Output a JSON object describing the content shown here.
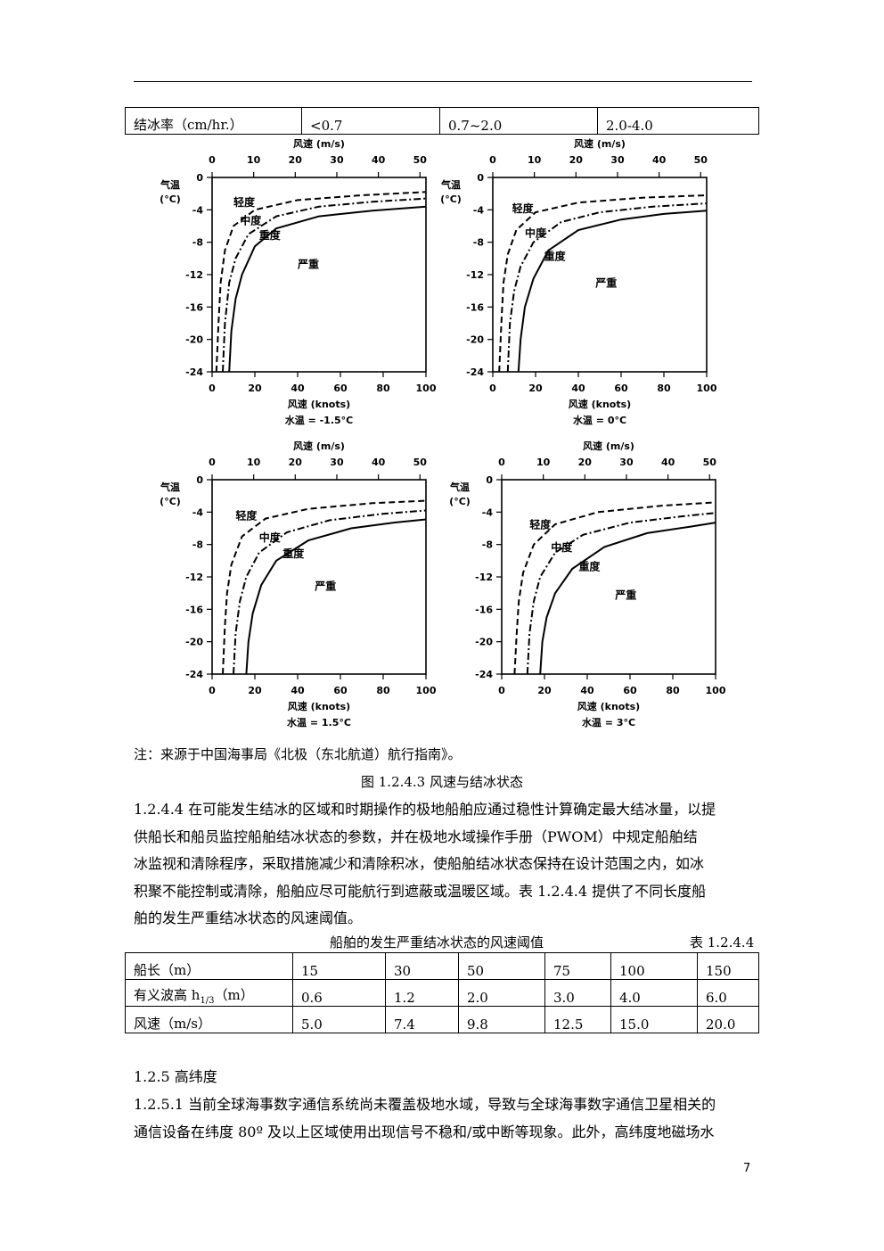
{
  "ice_rate_table": {
    "cells": [
      "结冰率（cm/hr.）",
      "<0.7",
      "0.7~2.0",
      "2.0-4.0"
    ]
  },
  "charts": [
    {
      "water_temp_label": "水温 = -1.5°C",
      "labels": {
        "light": "轻度",
        "moderate": "中度",
        "heavy": "重度",
        "severe": "严重"
      }
    },
    {
      "water_temp_label": "水温 = 0°C",
      "labels": {
        "light": "轻度",
        "moderate": "中度",
        "heavy": "重度",
        "severe": "严重"
      }
    },
    {
      "water_temp_label": "水温 = 1.5°C",
      "labels": {
        "light": "轻度",
        "moderate": "中度",
        "heavy": "重度",
        "severe": "严重"
      }
    },
    {
      "water_temp_label": "水温 = 3°C",
      "labels": {
        "light": "轻度",
        "moderate": "中度",
        "heavy": "重度",
        "severe": "严重"
      }
    }
  ],
  "chart_common": {
    "top_axis_label": "风速 (m/s)",
    "bottom_axis_label": "风速 (knots)",
    "y_axis_label_line1": "气温",
    "y_axis_label_line2": "(°C)",
    "top_ticks": [
      "0",
      "10",
      "20",
      "30",
      "40",
      "50"
    ],
    "bottom_ticks": [
      "0",
      "20",
      "40",
      "60",
      "80",
      "100"
    ],
    "y_ticks": [
      "0",
      "-4",
      "-8",
      "-12",
      "-16",
      "-20",
      "-24"
    ]
  },
  "chart_data": [
    {
      "type": "line",
      "title": "水温 = -1.5°C",
      "xlabel": "风速 (knots)",
      "x2label": "风速 (m/s)",
      "ylabel": "气温 (°C)",
      "xlim": [
        0,
        100
      ],
      "ylim": [
        -24,
        0
      ],
      "series": [
        {
          "name": "轻度",
          "style": "dashed",
          "points": [
            [
              2,
              -24
            ],
            [
              3,
              -18
            ],
            [
              4,
              -13
            ],
            [
              6,
              -9
            ],
            [
              10,
              -6
            ],
            [
              20,
              -4
            ],
            [
              40,
              -2.8
            ],
            [
              70,
              -2.2
            ],
            [
              100,
              -1.8
            ]
          ]
        },
        {
          "name": "中度",
          "style": "dashdot",
          "points": [
            [
              5,
              -24
            ],
            [
              6,
              -18
            ],
            [
              8,
              -13
            ],
            [
              11,
              -10
            ],
            [
              17,
              -7
            ],
            [
              30,
              -4.8
            ],
            [
              50,
              -3.6
            ],
            [
              75,
              -3
            ],
            [
              100,
              -2.6
            ]
          ]
        },
        {
          "name": "重度",
          "style": "solid",
          "points": [
            [
              8,
              -24
            ],
            [
              9,
              -19
            ],
            [
              11,
              -15
            ],
            [
              14,
              -12
            ],
            [
              20,
              -8.5
            ],
            [
              30,
              -6.3
            ],
            [
              50,
              -4.8
            ],
            [
              75,
              -4.1
            ],
            [
              100,
              -3.6
            ]
          ]
        }
      ]
    },
    {
      "type": "line",
      "title": "水温 = 0°C",
      "xlabel": "风速 (knots)",
      "x2label": "风速 (m/s)",
      "ylabel": "气温 (°C)",
      "xlim": [
        0,
        100
      ],
      "ylim": [
        -24,
        0
      ],
      "series": [
        {
          "name": "轻度",
          "style": "dashed",
          "points": [
            [
              3,
              -24
            ],
            [
              4,
              -18
            ],
            [
              5,
              -13
            ],
            [
              7,
              -9.5
            ],
            [
              11,
              -6.5
            ],
            [
              20,
              -4.3
            ],
            [
              40,
              -3.1
            ],
            [
              70,
              -2.5
            ],
            [
              100,
              -2.2
            ]
          ]
        },
        {
          "name": "中度",
          "style": "dashdot",
          "points": [
            [
              7,
              -24
            ],
            [
              8,
              -18
            ],
            [
              10,
              -14
            ],
            [
              13,
              -11
            ],
            [
              19,
              -8
            ],
            [
              32,
              -5.5
            ],
            [
              50,
              -4.3
            ],
            [
              75,
              -3.6
            ],
            [
              100,
              -3.2
            ]
          ]
        },
        {
          "name": "重度",
          "style": "solid",
          "points": [
            [
              12,
              -24
            ],
            [
              13,
              -20
            ],
            [
              15,
              -16
            ],
            [
              19,
              -12.5
            ],
            [
              26,
              -9
            ],
            [
              40,
              -6.5
            ],
            [
              60,
              -5.2
            ],
            [
              80,
              -4.5
            ],
            [
              100,
              -4.1
            ]
          ]
        }
      ]
    },
    {
      "type": "line",
      "title": "水温 = 1.5°C",
      "xlabel": "风速 (knots)",
      "x2label": "风速 (m/s)",
      "ylabel": "气温 (°C)",
      "xlim": [
        0,
        100
      ],
      "ylim": [
        -24,
        0
      ],
      "series": [
        {
          "name": "轻度",
          "style": "dashed",
          "points": [
            [
              5,
              -24
            ],
            [
              6,
              -18
            ],
            [
              7,
              -14
            ],
            [
              9,
              -10.5
            ],
            [
              14,
              -7
            ],
            [
              25,
              -4.8
            ],
            [
              45,
              -3.6
            ],
            [
              75,
              -2.9
            ],
            [
              100,
              -2.6
            ]
          ]
        },
        {
          "name": "中度",
          "style": "dashdot",
          "points": [
            [
              10,
              -24
            ],
            [
              11,
              -19
            ],
            [
              13,
              -15
            ],
            [
              16,
              -12
            ],
            [
              22,
              -9
            ],
            [
              35,
              -6.5
            ],
            [
              55,
              -5
            ],
            [
              80,
              -4.2
            ],
            [
              100,
              -3.8
            ]
          ]
        },
        {
          "name": "重度",
          "style": "solid",
          "points": [
            [
              16,
              -24
            ],
            [
              17,
              -20
            ],
            [
              19,
              -16.5
            ],
            [
              23,
              -13
            ],
            [
              30,
              -10
            ],
            [
              45,
              -7.5
            ],
            [
              65,
              -6
            ],
            [
              85,
              -5.3
            ],
            [
              100,
              -4.9
            ]
          ]
        }
      ]
    },
    {
      "type": "line",
      "title": "水温 = 3°C",
      "xlabel": "风速 (knots)",
      "x2label": "风速 (m/s)",
      "ylabel": "气温 (°C)",
      "xlim": [
        0,
        100
      ],
      "ylim": [
        -24,
        0
      ],
      "series": [
        {
          "name": "轻度",
          "style": "dashed",
          "points": [
            [
              6,
              -24
            ],
            [
              7,
              -19
            ],
            [
              8,
              -15
            ],
            [
              10,
              -11.5
            ],
            [
              15,
              -8
            ],
            [
              25,
              -5.5
            ],
            [
              45,
              -4
            ],
            [
              75,
              -3.2
            ],
            [
              100,
              -2.8
            ]
          ]
        },
        {
          "name": "中度",
          "style": "dashdot",
          "points": [
            [
              12,
              -24
            ],
            [
              13,
              -19
            ],
            [
              15,
              -15
            ],
            [
              18,
              -12
            ],
            [
              25,
              -9
            ],
            [
              38,
              -6.8
            ],
            [
              60,
              -5.3
            ],
            [
              85,
              -4.5
            ],
            [
              100,
              -4.1
            ]
          ]
        },
        {
          "name": "重度",
          "style": "solid",
          "points": [
            [
              18,
              -24
            ],
            [
              19,
              -20
            ],
            [
              21,
              -17
            ],
            [
              25,
              -14
            ],
            [
              33,
              -11
            ],
            [
              48,
              -8.3
            ],
            [
              68,
              -6.6
            ],
            [
              88,
              -5.8
            ],
            [
              100,
              -5.3
            ]
          ]
        }
      ]
    }
  ],
  "note": "注：来源于中国海事局《北极（东北航道）航行指南》。",
  "figure_caption": "图 1.2.4.3  风速与结冰状态",
  "paragraph_1": [
    "1.2.4.4 在可能发生结冰的区域和时期操作的极地船舶应通过稳性计算确定最大结冰量，以提",
    "供船长和船员监控船舶结冰状态的参数，并在极地水域操作手册（PWOM）中规定船舶结",
    "冰监视和清除程序，采取措施减少和清除积冰，使船舶结冰状态保持在设计范围之内，如冰",
    "积聚不能控制或清除，船舶应尽可能航行到遮蔽或温暖区域。表 1.2.4.4 提供了不同长度船",
    "舶的发生严重结冰状态的风速阈值。"
  ],
  "table_caption": "船舶的发生严重结冰状态的风速阈值",
  "table_number": "表 1.2.4.4",
  "threshold_table": {
    "rows": [
      [
        "船长（m）",
        "15",
        "30",
        "50",
        "75",
        "100",
        "150"
      ],
      [
        "有义波高 h",
        "0.6",
        "1.2",
        "2.0",
        "3.0",
        "4.0",
        "6.0"
      ],
      [
        "风速（m/s）",
        "5.0",
        "7.4",
        "9.8",
        "12.5",
        "15.0",
        "20.0"
      ]
    ],
    "wave_sub": "1/3",
    "wave_unit": "（m）"
  },
  "section_heading": "1.2.5 高纬度",
  "paragraph_2": [
    "1.2.5.1 当前全球海事数字通信系统尚未覆盖极地水域，导致与全球海事数字通信卫星相关的",
    "通信设备在纬度 80º 及以上区域使用出现信号不稳和/或中断等现象。此外，高纬度地磁场水"
  ],
  "page_number": "7"
}
